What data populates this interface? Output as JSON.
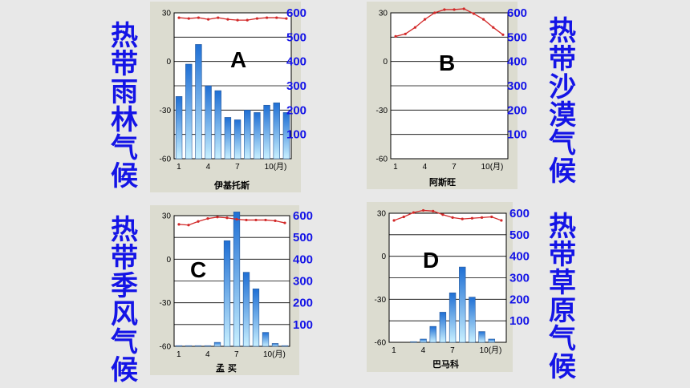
{
  "titles": {
    "A": "热带雨林气候",
    "B": "热带沙漠气候",
    "C": "热带季风气候",
    "D": "热带草原气候"
  },
  "colors": {
    "title": "#1414e6",
    "bar_top": "#1f6fd4",
    "bar_bottom": "#c8f0ff",
    "temp_line": "#d22828",
    "right_axis": "#1414e6"
  },
  "chart_data": [
    {
      "type": "bar",
      "id": "A",
      "label": "A",
      "station": "伊基托斯",
      "x_ticks": [
        "1",
        "4",
        "7",
        "10(月)"
      ],
      "y_left_ticks": [
        "30",
        "0",
        "-30",
        "-60"
      ],
      "y_right_ticks": [
        "600",
        "500",
        "400",
        "300",
        "200",
        "100"
      ],
      "ylim_temp": [
        -60,
        30
      ],
      "ylim_precip": [
        0,
        600
      ],
      "precip_mm": [
        256,
        389,
        470,
        300,
        280,
        170,
        160,
        200,
        190,
        220,
        230,
        190
      ],
      "temp_c": [
        27,
        26.5,
        27,
        26,
        27,
        26,
        25.5,
        25.5,
        26.5,
        27,
        27,
        26.5
      ]
    },
    {
      "type": "bar",
      "id": "B",
      "label": "B",
      "station": "阿斯旺",
      "x_ticks": [
        "1",
        "4",
        "7",
        "10(月)"
      ],
      "y_left_ticks": [
        "30",
        "0",
        "-30",
        "-60"
      ],
      "y_right_ticks": [
        "600",
        "500",
        "400",
        "300",
        "200",
        "100"
      ],
      "ylim_temp": [
        -60,
        30
      ],
      "ylim_precip": [
        0,
        600
      ],
      "precip_mm": [
        0,
        0,
        0,
        0,
        0,
        0,
        0,
        0,
        0,
        0,
        0,
        0
      ],
      "temp_c": [
        15.5,
        17,
        21,
        26,
        30,
        32,
        32,
        32.5,
        29.5,
        26,
        21,
        16.5
      ]
    },
    {
      "type": "bar",
      "id": "C",
      "label": "C",
      "station": "孟  买",
      "x_ticks": [
        "1",
        "4",
        "7",
        "10(月)"
      ],
      "y_left_ticks": [
        "30",
        "0",
        "-30",
        "-60"
      ],
      "y_right_ticks": [
        "600",
        "500",
        "400",
        "300",
        "200",
        "100"
      ],
      "ylim_temp": [
        -60,
        30
      ],
      "ylim_precip": [
        0,
        600
      ],
      "precip_mm": [
        3,
        3,
        3,
        3,
        18,
        485,
        617,
        340,
        264,
        64,
        13,
        3
      ],
      "temp_c": [
        24,
        23.5,
        26,
        28,
        29,
        28.5,
        27.5,
        27,
        27,
        27,
        26.5,
        25
      ]
    },
    {
      "type": "bar",
      "id": "D",
      "label": "D",
      "station": "巴马科",
      "x_ticks": [
        "1",
        "4",
        "7",
        "10(月)"
      ],
      "y_left_ticks": [
        "30",
        "0",
        "-30",
        "-60"
      ],
      "y_right_ticks": [
        "600",
        "500",
        "400",
        "300",
        "200",
        "100"
      ],
      "ylim_temp": [
        -60,
        30
      ],
      "ylim_precip": [
        0,
        600
      ],
      "precip_mm": [
        0,
        0,
        3,
        15,
        74,
        140,
        230,
        350,
        210,
        50,
        15,
        0
      ],
      "temp_c": [
        25,
        27.5,
        30.5,
        32,
        31.5,
        29,
        27,
        26,
        26.5,
        27,
        27.5,
        25
      ]
    }
  ]
}
